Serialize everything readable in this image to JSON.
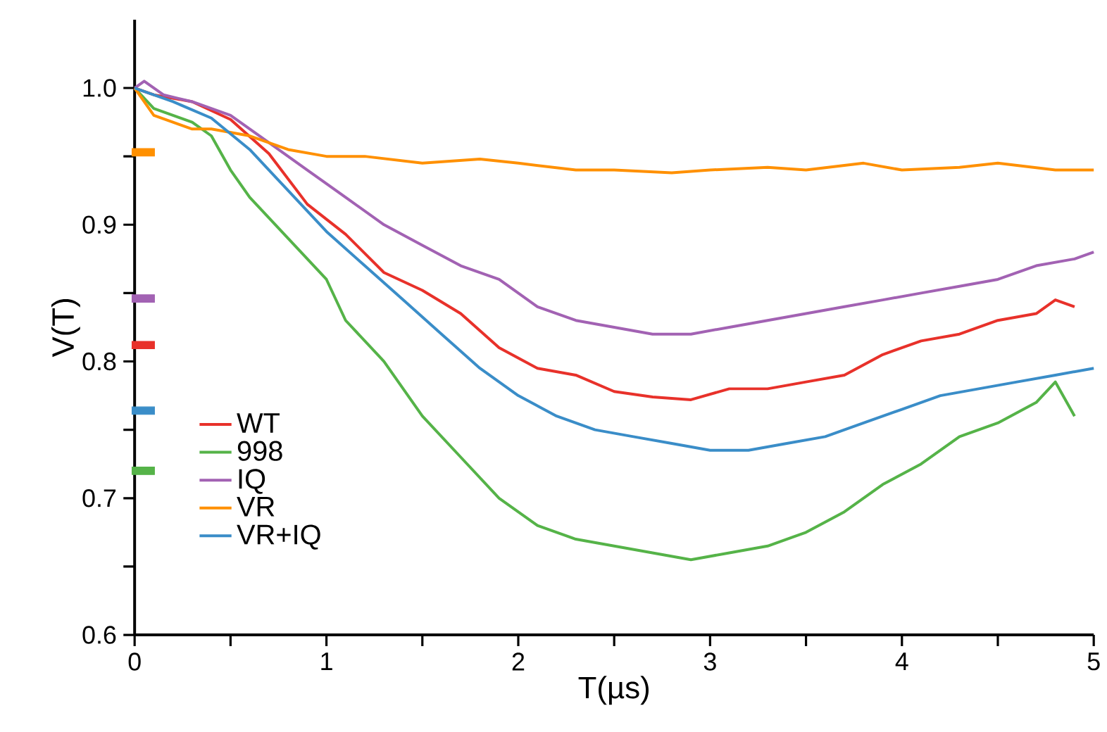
{
  "chart_data": {
    "type": "line",
    "xlabel": "T(µs)",
    "ylabel": "V(T)",
    "xlim": [
      0,
      5
    ],
    "ylim": [
      0.6,
      1.05
    ],
    "xticks": [
      0,
      {
        "value": 0.5,
        "label": null
      },
      1,
      {
        "value": 1.5,
        "label": null
      },
      2,
      {
        "value": 2.5,
        "label": null
      },
      3,
      {
        "value": 3.5,
        "label": null
      },
      4,
      {
        "value": 4.5,
        "label": null
      },
      5
    ],
    "yticks": [
      0.6,
      {
        "value": 0.65,
        "label": null
      },
      0.7,
      {
        "value": 0.75,
        "label": null
      },
      0.8,
      {
        "value": 0.85,
        "label": null
      },
      0.9,
      {
        "value": 0.95,
        "label": null
      },
      {
        "value": 1.0,
        "label": "1.0"
      }
    ],
    "grid": false,
    "legend": "bottom left",
    "marker": "none",
    "line_style": "solid",
    "series": [
      {
        "name": "WT",
        "color": "#e8312a",
        "x": [
          0,
          0.1,
          0.3,
          0.5,
          0.7,
          0.9,
          1.1,
          1.3,
          1.5,
          1.7,
          1.9,
          2.1,
          2.3,
          2.5,
          2.7,
          2.9,
          3.1,
          3.3,
          3.5,
          3.7,
          3.9,
          4.1,
          4.3,
          4.5,
          4.7,
          4.8,
          4.9
        ],
        "values": [
          1.0,
          0.995,
          0.99,
          0.977,
          0.952,
          0.915,
          0.893,
          0.865,
          0.852,
          0.835,
          0.81,
          0.795,
          0.79,
          0.778,
          0.774,
          0.772,
          0.78,
          0.78,
          0.785,
          0.79,
          0.805,
          0.815,
          0.82,
          0.83,
          0.835,
          0.845,
          0.84
        ]
      },
      {
        "name": "998",
        "color": "#55b348",
        "x": [
          0,
          0.1,
          0.2,
          0.3,
          0.4,
          0.5,
          0.6,
          0.8,
          1.0,
          1.1,
          1.3,
          1.5,
          1.7,
          1.9,
          2.1,
          2.3,
          2.5,
          2.7,
          2.9,
          3.1,
          3.3,
          3.5,
          3.7,
          3.9,
          4.1,
          4.3,
          4.5,
          4.7,
          4.8,
          4.9
        ],
        "values": [
          1.0,
          0.985,
          0.98,
          0.975,
          0.965,
          0.94,
          0.92,
          0.89,
          0.86,
          0.83,
          0.8,
          0.76,
          0.73,
          0.7,
          0.68,
          0.67,
          0.665,
          0.66,
          0.655,
          0.66,
          0.665,
          0.675,
          0.69,
          0.71,
          0.725,
          0.745,
          0.755,
          0.77,
          0.785,
          0.76
        ]
      },
      {
        "name": "IQ",
        "color": "#a262b3",
        "x": [
          0,
          0.05,
          0.15,
          0.3,
          0.5,
          0.7,
          0.9,
          1.1,
          1.3,
          1.5,
          1.7,
          1.9,
          2.1,
          2.3,
          2.5,
          2.7,
          2.9,
          3.1,
          3.3,
          3.5,
          3.7,
          3.9,
          4.1,
          4.3,
          4.5,
          4.7,
          4.9,
          5.0
        ],
        "values": [
          1.0,
          1.005,
          0.995,
          0.99,
          0.98,
          0.96,
          0.94,
          0.92,
          0.9,
          0.885,
          0.87,
          0.86,
          0.84,
          0.83,
          0.825,
          0.82,
          0.82,
          0.825,
          0.83,
          0.835,
          0.84,
          0.845,
          0.85,
          0.855,
          0.86,
          0.87,
          0.875,
          0.88
        ]
      },
      {
        "name": "VR",
        "color": "#ff9000",
        "x": [
          0,
          0.1,
          0.2,
          0.3,
          0.4,
          0.6,
          0.8,
          1.0,
          1.2,
          1.5,
          1.8,
          2.0,
          2.3,
          2.5,
          2.8,
          3.0,
          3.3,
          3.5,
          3.8,
          4.0,
          4.3,
          4.5,
          4.8,
          5.0
        ],
        "values": [
          1.0,
          0.98,
          0.975,
          0.97,
          0.97,
          0.965,
          0.955,
          0.95,
          0.95,
          0.945,
          0.948,
          0.945,
          0.94,
          0.94,
          0.938,
          0.94,
          0.942,
          0.94,
          0.945,
          0.94,
          0.942,
          0.945,
          0.94,
          0.94
        ]
      },
      {
        "name": "VR+IQ",
        "color": "#3a8dc8",
        "x": [
          0,
          0.2,
          0.4,
          0.6,
          0.8,
          1.0,
          1.2,
          1.4,
          1.6,
          1.8,
          2.0,
          2.2,
          2.4,
          2.6,
          2.8,
          3.0,
          3.2,
          3.4,
          3.6,
          3.8,
          4.0,
          4.2,
          4.4,
          4.6,
          4.8,
          5.0
        ],
        "values": [
          1.0,
          0.99,
          0.978,
          0.955,
          0.925,
          0.895,
          0.87,
          0.845,
          0.82,
          0.795,
          0.775,
          0.76,
          0.75,
          0.745,
          0.74,
          0.735,
          0.735,
          0.74,
          0.745,
          0.755,
          0.765,
          0.775,
          0.78,
          0.785,
          0.79,
          0.795
        ]
      },
      {
        "type": "scatter",
        "marker": "square",
        "x": [
          0.045,
          0.045,
          0.045,
          0.045,
          0.045
        ],
        "values": [
          0.953,
          0.846,
          0.812,
          0.764,
          0.72
        ],
        "colors": [
          "#ff9000",
          "#a262b3",
          "#e8312a",
          "#3a8dc8",
          "#55b348"
        ]
      }
    ]
  }
}
